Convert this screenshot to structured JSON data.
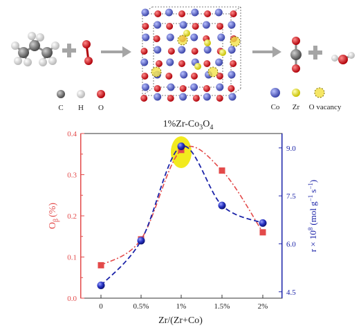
{
  "scheme": {
    "legend_left": [
      {
        "symbol": "C",
        "color": "#6e6e6e"
      },
      {
        "symbol": "H",
        "color": "#e4e4e4"
      },
      {
        "symbol": "O",
        "color": "#d8141a"
      }
    ],
    "legend_right": [
      {
        "symbol": "Co",
        "color": "#6a76d6"
      },
      {
        "symbol": "Zr",
        "color": "#e2e41e"
      },
      {
        "symbol": "O vacancy",
        "color": "#f3e24a"
      }
    ],
    "catalyst_label_main": "1%Zr-Co",
    "catalyst_label_sub1": "3",
    "catalyst_label_mid": "O",
    "catalyst_label_sub2": "4",
    "colors": {
      "arrow": "#a5a5a5",
      "plus": "#a5a5a5"
    }
  },
  "chart_data": {
    "type": "line",
    "categories": [
      "0",
      "0.5%",
      "1%",
      "1.5%",
      "2%"
    ],
    "xlabel": "Zr/(Zr+Co)",
    "series": [
      {
        "axis": "left",
        "marker": "square",
        "color": "#e34a4a",
        "line_style": "dash-dot",
        "values": [
          0.08,
          0.143,
          0.36,
          0.31,
          0.16
        ]
      },
      {
        "axis": "right",
        "marker": "sphere",
        "color": "#1a22a8",
        "line_style": "dashed",
        "values": [
          4.7,
          6.1,
          9.05,
          7.2,
          6.65
        ]
      }
    ],
    "left_axis": {
      "label_main": "O",
      "label_sub": "β",
      "label_unit": "(%)",
      "ylim": [
        0.0,
        0.4
      ],
      "ticks": [
        "0.0",
        "0.1",
        "0.2",
        "0.3",
        "0.4"
      ],
      "color": "#e34a4a"
    },
    "right_axis": {
      "label_text": "r × 10",
      "label_sup1": "8",
      "label_unit_a": "(mol g",
      "label_sup2": "−1",
      "label_unit_b": "s",
      "label_sup3": "−1",
      "label_close": ")",
      "ylim": [
        4.3,
        9.45
      ],
      "ticks": [
        "4.5",
        "6.0",
        "7.5",
        "9.0"
      ],
      "color": "#1a22a8"
    },
    "highlight": {
      "category": "1%",
      "color": "#f2ea1e"
    },
    "grid": false
  }
}
